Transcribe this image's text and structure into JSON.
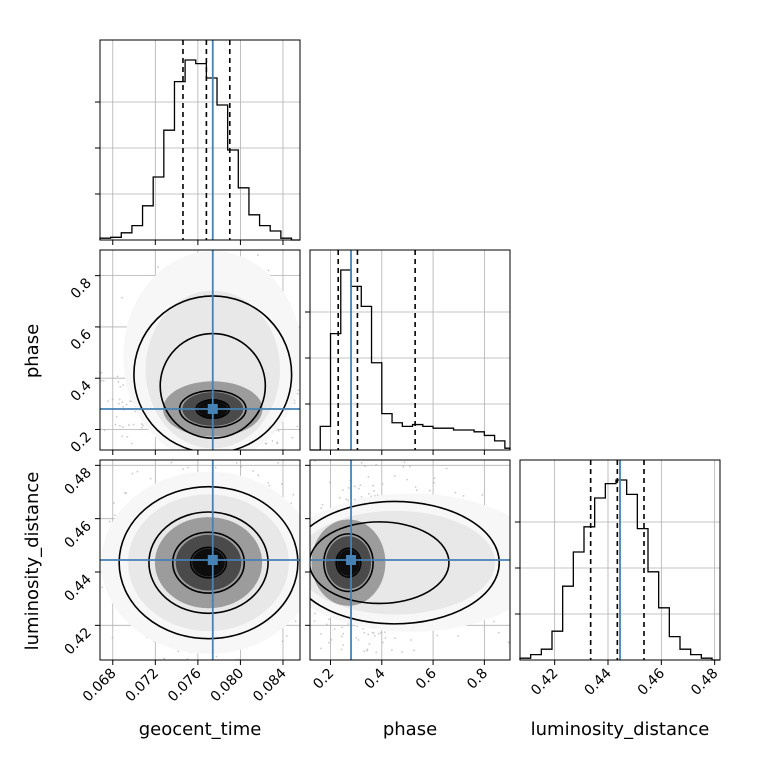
{
  "chart_data": {
    "type": "corner",
    "parameters": [
      "geocent_time",
      "phase",
      "luminosity_distance"
    ],
    "axis_labels": {
      "x": [
        "geocent_time",
        "phase",
        "luminosity_distance"
      ],
      "y": [
        "phase",
        "luminosity_distance"
      ]
    },
    "ranges": {
      "geocent_time": [
        0.0668,
        0.0856
      ],
      "phase": [
        0.12,
        0.9
      ],
      "luminosity_distance": [
        0.407,
        0.482
      ]
    },
    "ticks": {
      "geocent_time": [
        "0.068",
        "0.072",
        "0.076",
        "0.080",
        "0.084"
      ],
      "phase": [
        "0.2",
        "0.4",
        "0.6",
        "0.8"
      ],
      "luminosity_distance": [
        "0.42",
        "0.44",
        "0.46",
        "0.48"
      ]
    },
    "truths": {
      "geocent_time": 0.0774,
      "phase": 0.28,
      "luminosity_distance": 0.4445
    },
    "quantiles": {
      "geocent_time": [
        0.0746,
        0.0768,
        0.079
      ],
      "phase": [
        0.23,
        0.305,
        0.53
      ],
      "luminosity_distance": [
        0.4335,
        0.4435,
        0.4535
      ]
    },
    "histograms": {
      "geocent_time": {
        "edges": [
          0.0668,
          0.0678,
          0.0688,
          0.0698,
          0.0708,
          0.0718,
          0.0728,
          0.0738,
          0.0748,
          0.0758,
          0.0768,
          0.0778,
          0.0788,
          0.0798,
          0.0808,
          0.0818,
          0.0828,
          0.0838,
          0.0848,
          0.0856
        ],
        "counts": [
          0.01,
          0.015,
          0.04,
          0.08,
          0.19,
          0.35,
          0.61,
          0.88,
          1.0,
          0.98,
          0.9,
          0.75,
          0.5,
          0.29,
          0.14,
          0.08,
          0.05,
          0.01,
          0.0
        ]
      },
      "phase": {
        "edges": [
          0.12,
          0.16,
          0.2,
          0.24,
          0.28,
          0.32,
          0.36,
          0.4,
          0.44,
          0.48,
          0.52,
          0.56,
          0.6,
          0.64,
          0.68,
          0.72,
          0.76,
          0.8,
          0.84,
          0.88,
          0.9
        ],
        "counts": [
          0.0,
          0.13,
          0.64,
          0.99,
          0.9,
          0.79,
          0.48,
          0.2,
          0.15,
          0.13,
          0.14,
          0.13,
          0.12,
          0.12,
          0.11,
          0.11,
          0.1,
          0.08,
          0.05,
          0.01
        ]
      },
      "luminosity_distance": {
        "edges": [
          0.407,
          0.411,
          0.415,
          0.419,
          0.423,
          0.427,
          0.431,
          0.435,
          0.439,
          0.443,
          0.447,
          0.451,
          0.455,
          0.459,
          0.463,
          0.467,
          0.471,
          0.475,
          0.479,
          0.482
        ],
        "counts": [
          0.01,
          0.03,
          0.06,
          0.16,
          0.41,
          0.6,
          0.74,
          0.9,
          0.98,
          1.0,
          0.92,
          0.73,
          0.49,
          0.29,
          0.13,
          0.06,
          0.03,
          0.01,
          0.0
        ]
      }
    },
    "density_2d": {
      "phase_vs_geocent_time": {
        "center": [
          0.0774,
          0.28
        ],
        "spread": [
          0.0026,
          0.06
        ]
      },
      "luminosity_distance_vs_geocent_time": {
        "center": [
          0.077,
          0.4435
        ],
        "spread": [
          0.0028,
          0.0095
        ]
      },
      "luminosity_distance_vs_phase": {
        "center": [
          0.27,
          0.4435
        ],
        "spread": [
          0.08,
          0.009
        ]
      }
    },
    "colors": {
      "truth": "#4682b4",
      "contour": "#000000",
      "grid": "#b0b0b0",
      "scatter": "#a0a0a0"
    },
    "grid": true
  }
}
